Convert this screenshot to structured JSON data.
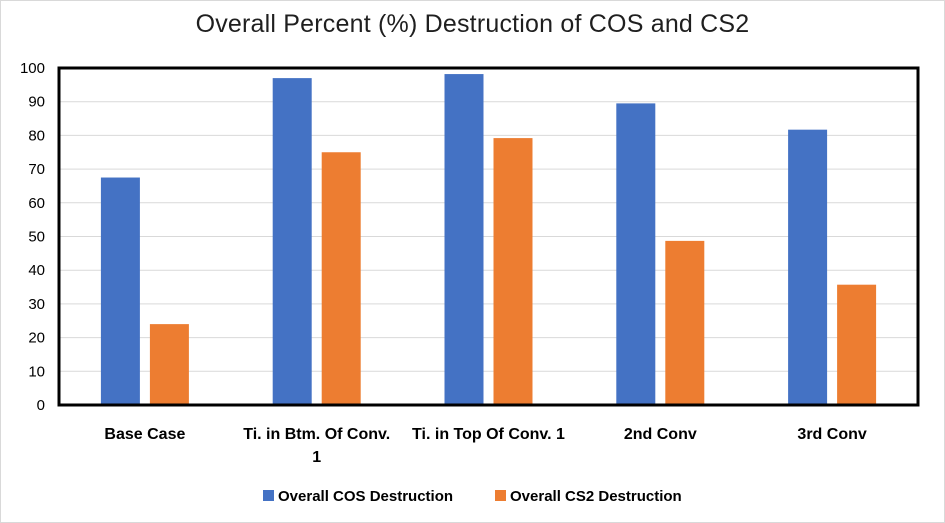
{
  "chart_data": {
    "type": "bar",
    "title": "Overall Percent (%) Destruction of COS and CS2",
    "xlabel": "",
    "ylabel": "",
    "ylim": [
      0,
      100
    ],
    "yticks": [
      0,
      10,
      20,
      30,
      40,
      50,
      60,
      70,
      80,
      90,
      100
    ],
    "grid": true,
    "legend_position": "bottom",
    "categories": [
      [
        "Base Case"
      ],
      [
        "Ti. in Btm. Of Conv.",
        "1"
      ],
      [
        "Ti. in Top Of Conv. 1"
      ],
      [
        "2nd Conv"
      ],
      [
        "3rd Conv"
      ]
    ],
    "series": [
      {
        "name": "Overall COS Destruction",
        "color": "#4472c4",
        "values": [
          67.5,
          97,
          98.2,
          89.5,
          81.7
        ]
      },
      {
        "name": "Overall CS2 Destruction",
        "color": "#ed7d31",
        "values": [
          24,
          75,
          79.2,
          48.7,
          35.7
        ]
      }
    ]
  }
}
